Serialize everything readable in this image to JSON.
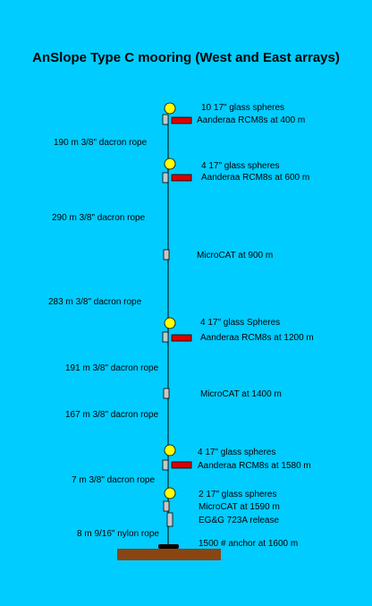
{
  "title": "AnSlope Type C mooring (West and East arrays)",
  "colors": {
    "background": "#00CCFF",
    "float": "#FFFF00",
    "current_meter": "#DD0000",
    "instrument": "#C8C8C8",
    "anchor_base": "#8B4513"
  },
  "instrument_labels": [
    "10  17\" glass spheres",
    "Aanderaa RCM8s at 400 m",
    "4  17\" glass spheres",
    "Aanderaa RCM8s at 600 m",
    "MicroCAT at 900 m",
    "4  17\" glass Spheres",
    "Aanderaa RCM8s at 1200 m",
    "MicroCAT at 1400 m",
    "4  17\" glass spheres",
    "Aanderaa RCM8s at 1580 m",
    "2  17\" glass spheres",
    "MicroCAT at 1590 m",
    "EG&G 723A release",
    "1500 # anchor  at 1600 m"
  ],
  "rope_labels": [
    "190 m 3/8\" dacron rope",
    "290 m 3/8\" dacron rope",
    "283 m 3/8\" dacron rope",
    "191 m 3/8\" dacron rope",
    "167 m 3/8\" dacron rope",
    "7 m 3/8\" dacron rope",
    "8 m 9/16\" nylon rope"
  ]
}
